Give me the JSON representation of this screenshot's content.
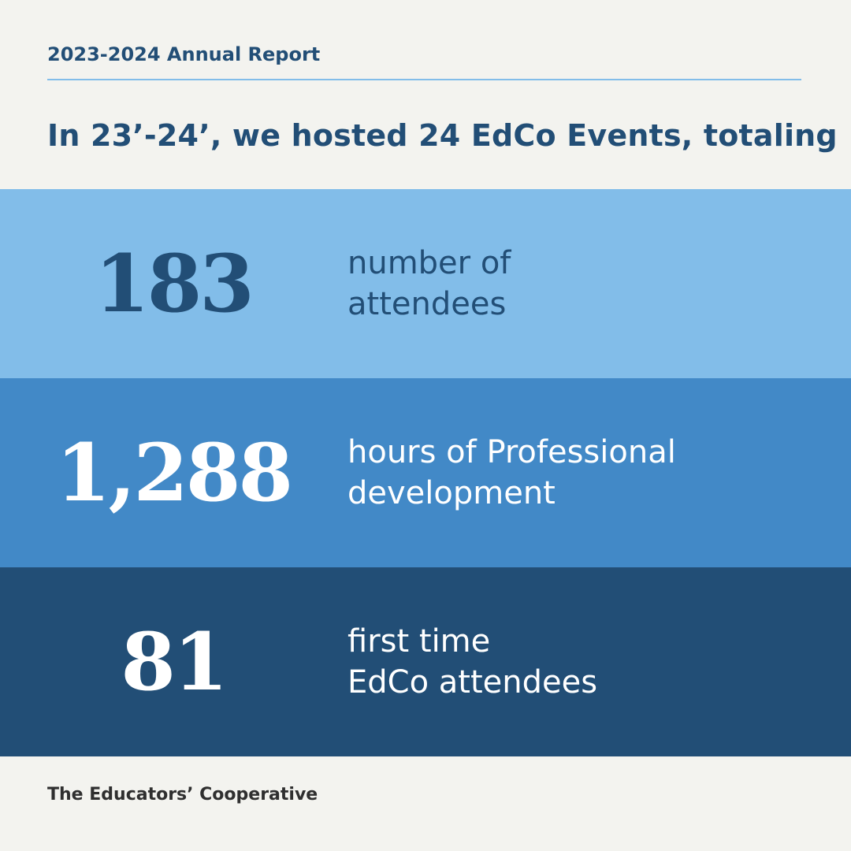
{
  "header": {
    "report_label": "2023-2024 Annual Report",
    "headline": "In 23’-24’, we hosted 24 EdCo Events, totaling"
  },
  "stats": [
    {
      "value": "183",
      "label_line1": "number of",
      "label_line2": "attendees",
      "background": "#82bde9",
      "number_color": "#224e76",
      "label_color": "#224e76"
    },
    {
      "value": "1,288",
      "label_line1": "hours of Professional",
      "label_line2": "development",
      "background": "#4289c7",
      "number_color": "#ffffff",
      "label_color": "#ffffff"
    },
    {
      "value": "81",
      "label_line1": "first time",
      "label_line2": "EdCo attendees",
      "background": "#224e76",
      "number_color": "#ffffff",
      "label_color": "#ffffff"
    }
  ],
  "footer": {
    "organization": "The Educators’ Cooperative"
  },
  "colors": {
    "page_background": "#f3f3ef",
    "accent_dark": "#224e76",
    "accent_light": "#82bde9",
    "accent_mid": "#4289c7"
  }
}
